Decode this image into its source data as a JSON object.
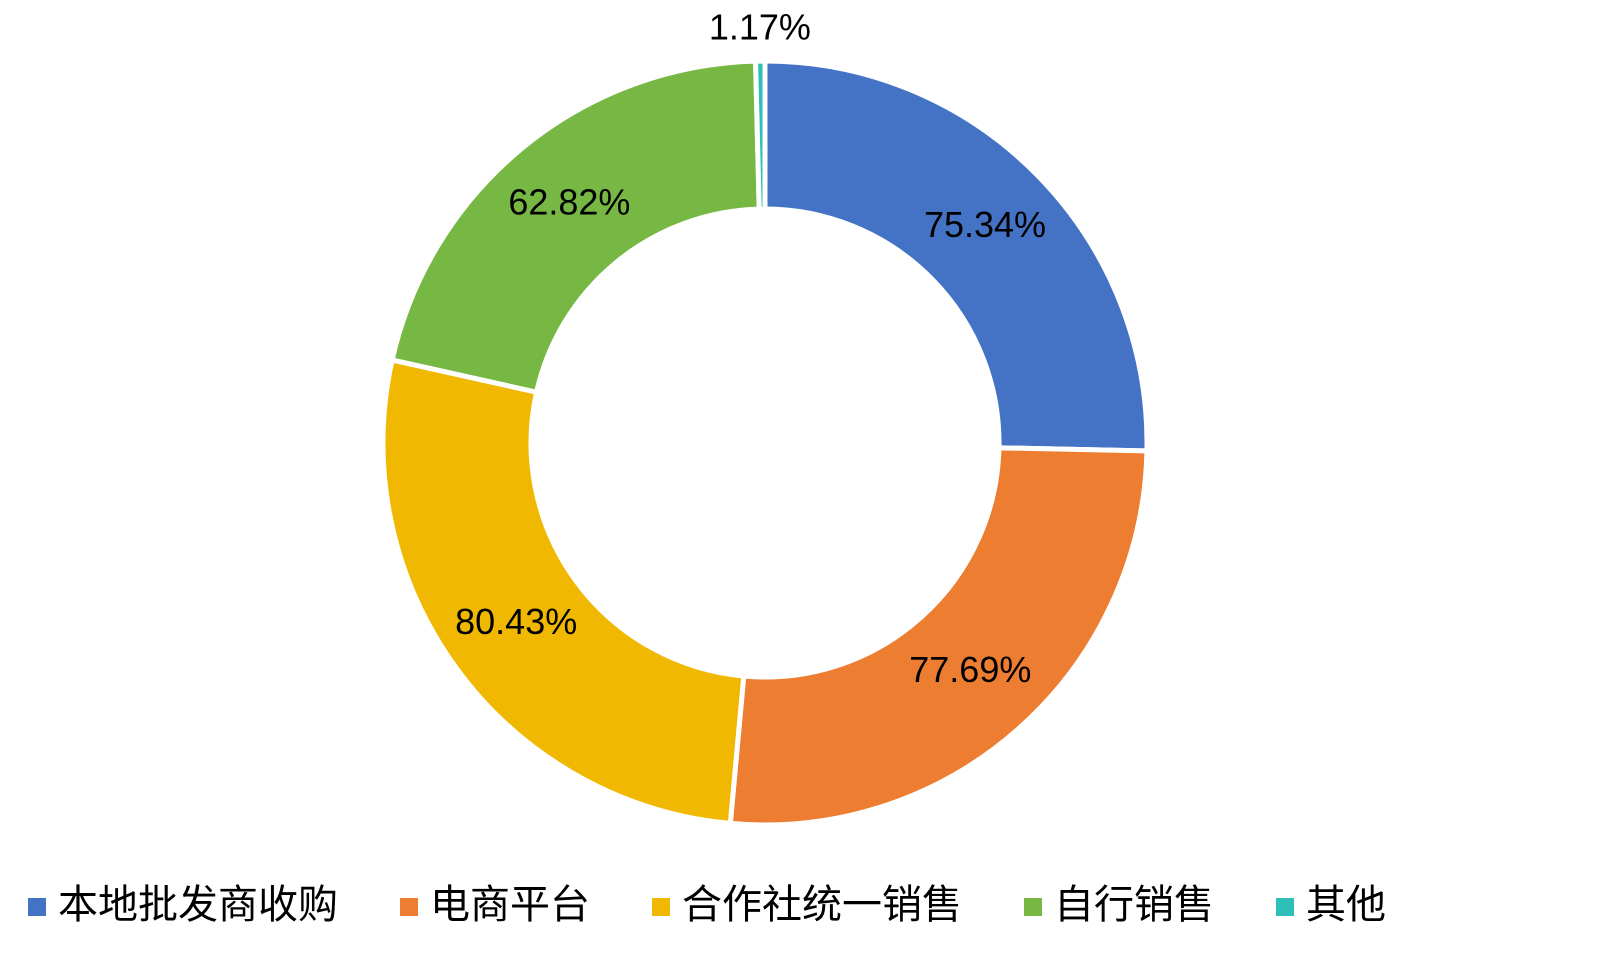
{
  "chart_data": {
    "type": "doughnut",
    "categories": [
      "本地批发商收购",
      "电商平台",
      "合作社统一销售",
      "自行销售",
      "其他"
    ],
    "values": [
      75.34,
      77.69,
      80.43,
      62.82,
      1.17
    ],
    "value_labels": [
      "75.34%",
      "77.69%",
      "80.43%",
      "62.82%",
      "1.17%"
    ],
    "colors": [
      "#4472c4",
      "#ed7d31",
      "#f0b800",
      "#76b843",
      "#2ec0b8"
    ],
    "legend": "bottom"
  }
}
